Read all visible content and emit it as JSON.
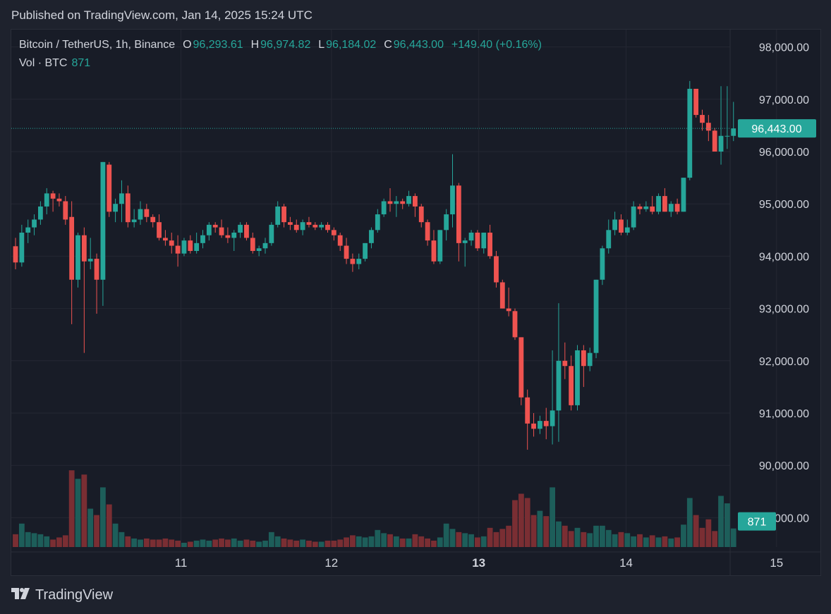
{
  "published": "Published on TradingView.com, Jan 14, 2025 15:24 UTC",
  "legend": {
    "symbol": "Bitcoin / TetherUS, 1h, Binance",
    "o_label": "O",
    "o_value": "96,293.61",
    "h_label": "H",
    "h_value": "96,974.82",
    "l_label": "L",
    "l_value": "96,184.02",
    "c_label": "C",
    "c_value": "96,443.00",
    "change": "+149.40 (+0.16%)",
    "vol_label": "Vol · BTC",
    "vol_value": "871"
  },
  "footer": {
    "brand": "TradingView",
    "logo": "tradingview-logo-icon"
  },
  "colors": {
    "up": "#26a69a",
    "down": "#ef5350",
    "up_vol": "#1d5e5a",
    "down_vol": "#7a2e33",
    "bg": "#181c27",
    "grid": "#242733"
  },
  "chart_data": {
    "type": "candlestick",
    "timeframe": "1h",
    "x_ticks": [
      {
        "label": "11",
        "t": 26.5,
        "bold": false
      },
      {
        "label": "12",
        "t": 50.6,
        "bold": false
      },
      {
        "label": "13",
        "t": 74.2,
        "bold": true
      },
      {
        "label": "14",
        "t": 97.8,
        "bold": false
      },
      {
        "label": "15",
        "t": 121.9,
        "bold": false
      }
    ],
    "y_ticks": [
      {
        "label": "98,000.00",
        "v": 98000
      },
      {
        "label": "97,000.00",
        "v": 97000
      },
      {
        "label": "96,000.00",
        "v": 96000
      },
      {
        "label": "95,000.00",
        "v": 95000
      },
      {
        "label": "94,000.00",
        "v": 94000
      },
      {
        "label": "93,000.00",
        "v": 93000
      },
      {
        "label": "92,000.00",
        "v": 92000
      },
      {
        "label": "91,000.00",
        "v": 91000
      },
      {
        "label": "90,000.00",
        "v": 90000
      },
      {
        "label": "89,000.00",
        "v": 89000
      }
    ],
    "ylim": [
      88450,
      98450
    ],
    "last_price": {
      "label": "96,443.00",
      "v": 96443
    },
    "last_volume": {
      "label": "871",
      "v": 871
    },
    "volume_max": 4300,
    "candles": [
      [
        94190,
        94350,
        93750,
        93880,
        600
      ],
      [
        93880,
        94600,
        93800,
        94450,
        1100
      ],
      [
        94450,
        94700,
        94250,
        94550,
        700
      ],
      [
        94550,
        94800,
        94400,
        94700,
        650
      ],
      [
        94700,
        95050,
        94600,
        94950,
        600
      ],
      [
        94950,
        95300,
        94800,
        95200,
        500
      ],
      [
        95200,
        95250,
        94850,
        95100,
        350
      ],
      [
        95100,
        95200,
        94950,
        95050,
        450
      ],
      [
        95050,
        95150,
        94600,
        94700,
        550
      ],
      [
        94750,
        95050,
        92700,
        93550,
        3600
      ],
      [
        93550,
        94450,
        93400,
        94400,
        3200
      ],
      [
        94400,
        94550,
        92150,
        93900,
        3400
      ],
      [
        93900,
        94350,
        93750,
        93950,
        1800
      ],
      [
        93950,
        94050,
        92900,
        93550,
        1500
      ],
      [
        93550,
        95800,
        93050,
        95800,
        2800
      ],
      [
        95750,
        95800,
        94750,
        94850,
        2000
      ],
      [
        94850,
        95100,
        94650,
        95000,
        1100
      ],
      [
        95000,
        95450,
        94650,
        95200,
        700
      ],
      [
        95200,
        95350,
        94550,
        94650,
        500
      ],
      [
        94650,
        94900,
        94550,
        94700,
        400
      ],
      [
        94700,
        95050,
        94600,
        94900,
        350
      ],
      [
        94900,
        95000,
        94650,
        94750,
        400
      ],
      [
        94750,
        94800,
        94550,
        94650,
        350
      ],
      [
        94650,
        94800,
        94300,
        94350,
        350
      ],
      [
        94350,
        94500,
        94200,
        94300,
        400
      ],
      [
        94300,
        94450,
        94050,
        94200,
        350
      ],
      [
        94200,
        94400,
        93800,
        94050,
        300
      ],
      [
        94050,
        94350,
        94000,
        94300,
        200
      ],
      [
        94300,
        94400,
        94050,
        94100,
        250
      ],
      [
        94100,
        94450,
        94050,
        94250,
        300
      ],
      [
        94250,
        94500,
        94150,
        94400,
        350
      ],
      [
        94400,
        94650,
        94300,
        94600,
        300
      ],
      [
        94600,
        94650,
        94450,
        94550,
        350
      ],
      [
        94550,
        94700,
        94350,
        94400,
        400
      ],
      [
        94400,
        94550,
        94250,
        94350,
        350
      ],
      [
        94350,
        94500,
        94100,
        94450,
        400
      ],
      [
        94450,
        94650,
        94350,
        94600,
        300
      ],
      [
        94600,
        94650,
        94300,
        94350,
        350
      ],
      [
        94350,
        94450,
        94050,
        94100,
        300
      ],
      [
        94100,
        94200,
        94000,
        94150,
        250
      ],
      [
        94150,
        94350,
        94050,
        94250,
        300
      ],
      [
        94250,
        94650,
        94200,
        94600,
        700
      ],
      [
        94600,
        95050,
        94550,
        94950,
        500
      ],
      [
        94950,
        95000,
        94550,
        94650,
        400
      ],
      [
        94650,
        94750,
        94500,
        94600,
        350
      ],
      [
        94600,
        94700,
        94450,
        94500,
        300
      ],
      [
        94500,
        94700,
        94400,
        94650,
        350
      ],
      [
        94650,
        94750,
        94550,
        94600,
        300
      ],
      [
        94600,
        94650,
        94500,
        94550,
        250
      ],
      [
        94550,
        94650,
        94500,
        94600,
        250
      ],
      [
        94600,
        94650,
        94450,
        94500,
        300
      ],
      [
        94500,
        94550,
        94300,
        94400,
        300
      ],
      [
        94400,
        94450,
        94100,
        94200,
        350
      ],
      [
        94200,
        94350,
        93850,
        93950,
        450
      ],
      [
        93950,
        94050,
        93700,
        93850,
        550
      ],
      [
        93850,
        94050,
        93750,
        93950,
        500
      ],
      [
        93950,
        94250,
        93900,
        94250,
        450
      ],
      [
        94250,
        94550,
        94150,
        94500,
        500
      ],
      [
        94500,
        94900,
        94450,
        94800,
        800
      ],
      [
        94800,
        95100,
        94750,
        95050,
        650
      ],
      [
        95050,
        95300,
        94850,
        95000,
        600
      ],
      [
        95000,
        95150,
        94750,
        95050,
        500
      ],
      [
        95050,
        95100,
        94900,
        95000,
        400
      ],
      [
        95000,
        95250,
        94950,
        95150,
        400
      ],
      [
        95150,
        95200,
        94750,
        94950,
        600
      ],
      [
        94950,
        95000,
        94550,
        94650,
        500
      ],
      [
        94650,
        94700,
        94200,
        94300,
        400
      ],
      [
        94300,
        94500,
        93850,
        93900,
        300
      ],
      [
        93900,
        94500,
        93850,
        94500,
        450
      ],
      [
        94500,
        94900,
        94300,
        94800,
        1100
      ],
      [
        94800,
        95950,
        94550,
        95350,
        850
      ],
      [
        95350,
        95400,
        93900,
        94250,
        700
      ],
      [
        94250,
        94350,
        93800,
        94300,
        650
      ],
      [
        94300,
        94500,
        94200,
        94450,
        600
      ],
      [
        94450,
        94500,
        94100,
        94150,
        450
      ],
      [
        94150,
        94450,
        94050,
        94450,
        500
      ],
      [
        94450,
        94600,
        93950,
        94000,
        900
      ],
      [
        94000,
        94100,
        93400,
        93500,
        700
      ],
      [
        93500,
        93550,
        93000,
        93000,
        850
      ],
      [
        93000,
        93400,
        92850,
        92950,
        1000
      ],
      [
        92950,
        93000,
        92400,
        92450,
        2200
      ],
      [
        92450,
        92450,
        91150,
        91300,
        2500
      ],
      [
        91300,
        91450,
        90300,
        90800,
        2300
      ],
      [
        90800,
        91000,
        90550,
        90700,
        1500
      ],
      [
        90700,
        90950,
        90600,
        90850,
        1700
      ],
      [
        90850,
        91100,
        90500,
        90750,
        1450
      ],
      [
        90750,
        92200,
        90400,
        91050,
        2800
      ],
      [
        91050,
        93100,
        90450,
        92000,
        1200
      ],
      [
        92000,
        92350,
        91650,
        91900,
        1000
      ],
      [
        91900,
        92100,
        91050,
        91150,
        750
      ],
      [
        91150,
        92300,
        91050,
        92200,
        900
      ],
      [
        92200,
        92300,
        91500,
        91900,
        700
      ],
      [
        91900,
        92250,
        91800,
        92150,
        650
      ],
      [
        92150,
        93550,
        92050,
        93550,
        1000
      ],
      [
        93550,
        94200,
        93450,
        94150,
        1000
      ],
      [
        94150,
        94700,
        94050,
        94500,
        800
      ],
      [
        94500,
        94850,
        94400,
        94700,
        600
      ],
      [
        94700,
        94800,
        94400,
        94450,
        700
      ],
      [
        94450,
        94700,
        94400,
        94550,
        650
      ],
      [
        94550,
        95050,
        94500,
        94950,
        500
      ],
      [
        94950,
        95000,
        94800,
        94900,
        600
      ],
      [
        94900,
        95050,
        94850,
        94950,
        450
      ],
      [
        94950,
        95150,
        94800,
        94850,
        550
      ],
      [
        94850,
        95200,
        94800,
        95150,
        450
      ],
      [
        95150,
        95300,
        94850,
        94850,
        500
      ],
      [
        94850,
        95050,
        94750,
        95000,
        400
      ],
      [
        95000,
        95100,
        94800,
        94850,
        450
      ],
      [
        94850,
        95500,
        94850,
        95500,
        1050
      ],
      [
        95500,
        97350,
        95450,
        97200,
        2300
      ],
      [
        97200,
        97150,
        96650,
        96700,
        1500
      ],
      [
        96700,
        96800,
        96400,
        96550,
        900
      ],
      [
        96550,
        96700,
        96200,
        96400,
        1300
      ],
      [
        96400,
        96450,
        96000,
        96000,
        750
      ],
      [
        96000,
        97250,
        95750,
        96300,
        2400
      ],
      [
        96300,
        97250,
        96050,
        96300,
        2050
      ],
      [
        96300,
        96950,
        96200,
        96443,
        871
      ]
    ]
  }
}
